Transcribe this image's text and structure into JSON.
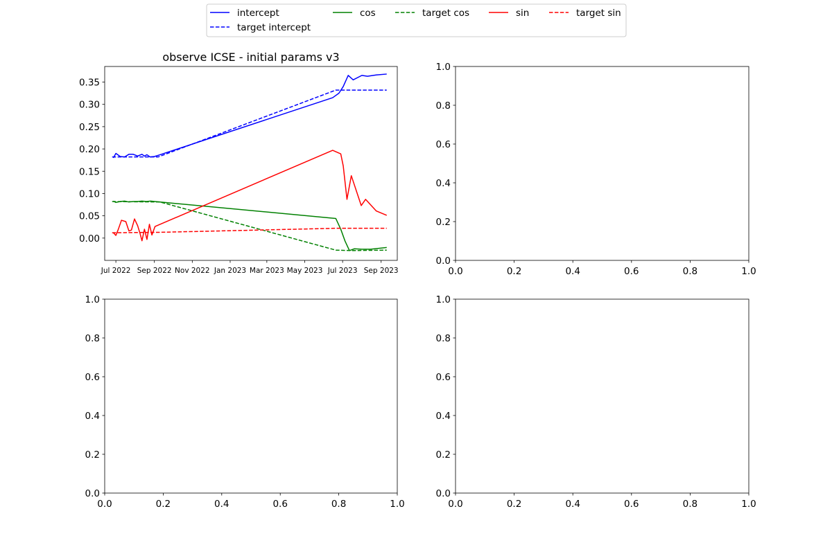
{
  "legend": {
    "placement": "top-center",
    "columns": 5,
    "entries": [
      {
        "label": "intercept",
        "color": "#0000ff",
        "dashed": false
      },
      {
        "label": "target intercept",
        "color": "#0000ff",
        "dashed": true
      },
      {
        "label": "cos",
        "color": "#008000",
        "dashed": false
      },
      {
        "label": "target cos",
        "color": "#008000",
        "dashed": true
      },
      {
        "label": "sin",
        "color": "#ff0000",
        "dashed": false
      },
      {
        "label": "target sin",
        "color": "#ff0000",
        "dashed": true
      }
    ]
  },
  "chart_data": [
    {
      "type": "line",
      "title": "observe ICSE - initial params v3",
      "xlabel": "",
      "ylabel": "",
      "x_axis_type": "date",
      "xlim": [
        "2022-06-13",
        "2023-09-27"
      ],
      "ylim": [
        -0.05,
        0.385
      ],
      "x_ticks": [
        {
          "date": "2022-07-01",
          "label": "Jul 2022"
        },
        {
          "date": "2022-09-01",
          "label": "Sep 2022"
        },
        {
          "date": "2022-11-01",
          "label": "Nov 2022"
        },
        {
          "date": "2023-01-01",
          "label": "Jan 2023"
        },
        {
          "date": "2023-03-01",
          "label": "Mar 2023"
        },
        {
          "date": "2023-05-01",
          "label": "May 2023"
        },
        {
          "date": "2023-07-01",
          "label": "Jul 2023"
        },
        {
          "date": "2023-09-01",
          "label": "Sep 2023"
        }
      ],
      "y_ticks": [
        0.0,
        0.05,
        0.1,
        0.15,
        0.2,
        0.25,
        0.3,
        0.35
      ],
      "y_tick_labels": [
        "0.00",
        "0.05",
        "0.10",
        "0.15",
        "0.20",
        "0.25",
        "0.30",
        "0.35"
      ],
      "grid": false,
      "series": [
        {
          "name": "intercept",
          "color": "#0000ff",
          "dashed": false,
          "points": [
            [
              "2022-06-27",
              0.18
            ],
            [
              "2022-07-01",
              0.19
            ],
            [
              "2022-07-08",
              0.183
            ],
            [
              "2022-07-15",
              0.182
            ],
            [
              "2022-07-22",
              0.188
            ],
            [
              "2022-07-29",
              0.188
            ],
            [
              "2022-08-05",
              0.184
            ],
            [
              "2022-08-12",
              0.188
            ],
            [
              "2022-08-16",
              0.184
            ],
            [
              "2022-08-20",
              0.187
            ],
            [
              "2022-08-25",
              0.182
            ],
            [
              "2022-09-01",
              0.183
            ],
            [
              "2022-09-08",
              0.186
            ],
            [
              "2023-06-15",
              0.315
            ],
            [
              "2023-06-25",
              0.325
            ],
            [
              "2023-07-02",
              0.34
            ],
            [
              "2023-07-10",
              0.365
            ],
            [
              "2023-07-18",
              0.355
            ],
            [
              "2023-08-01",
              0.365
            ],
            [
              "2023-08-10",
              0.363
            ],
            [
              "2023-08-24",
              0.366
            ],
            [
              "2023-09-10",
              0.368
            ]
          ]
        },
        {
          "name": "target intercept",
          "color": "#0000ff",
          "dashed": true,
          "points": [
            [
              "2022-06-25",
              0.182
            ],
            [
              "2022-09-07",
              0.182
            ],
            [
              "2023-06-20",
              0.332
            ],
            [
              "2023-09-10",
              0.332
            ]
          ]
        },
        {
          "name": "cos",
          "color": "#008000",
          "dashed": false,
          "points": [
            [
              "2022-06-27",
              0.083
            ],
            [
              "2022-07-01",
              0.08
            ],
            [
              "2022-07-08",
              0.082
            ],
            [
              "2022-07-15",
              0.083
            ],
            [
              "2022-07-22",
              0.081
            ],
            [
              "2022-07-29",
              0.082
            ],
            [
              "2022-08-05",
              0.082
            ],
            [
              "2022-08-12",
              0.083
            ],
            [
              "2022-08-19",
              0.082
            ],
            [
              "2022-08-26",
              0.083
            ],
            [
              "2022-09-02",
              0.082
            ],
            [
              "2023-06-20",
              0.044
            ],
            [
              "2023-06-28",
              0.02
            ],
            [
              "2023-07-05",
              -0.007
            ],
            [
              "2023-07-12",
              -0.028
            ],
            [
              "2023-07-20",
              -0.024
            ],
            [
              "2023-08-01",
              -0.025
            ],
            [
              "2023-08-15",
              -0.025
            ],
            [
              "2023-09-10",
              -0.021
            ]
          ]
        },
        {
          "name": "target cos",
          "color": "#008000",
          "dashed": true,
          "points": [
            [
              "2022-06-25",
              0.082
            ],
            [
              "2022-09-10",
              0.081
            ],
            [
              "2023-06-20",
              -0.027
            ],
            [
              "2023-07-15",
              -0.028
            ],
            [
              "2023-09-10",
              -0.027
            ]
          ]
        },
        {
          "name": "sin",
          "color": "#ff0000",
          "dashed": false,
          "points": [
            [
              "2022-06-27",
              0.012
            ],
            [
              "2022-07-01",
              0.006
            ],
            [
              "2022-07-05",
              0.02
            ],
            [
              "2022-07-10",
              0.04
            ],
            [
              "2022-07-17",
              0.037
            ],
            [
              "2022-07-22",
              0.016
            ],
            [
              "2022-07-26",
              0.018
            ],
            [
              "2022-07-31",
              0.043
            ],
            [
              "2022-08-05",
              0.028
            ],
            [
              "2022-08-09",
              0.01
            ],
            [
              "2022-08-12",
              -0.006
            ],
            [
              "2022-08-16",
              0.02
            ],
            [
              "2022-08-20",
              -0.003
            ],
            [
              "2022-08-24",
              0.031
            ],
            [
              "2022-08-28",
              0.007
            ],
            [
              "2022-09-02",
              0.026
            ],
            [
              "2023-06-15",
              0.197
            ],
            [
              "2023-06-28",
              0.189
            ],
            [
              "2023-07-02",
              0.162
            ],
            [
              "2023-07-08",
              0.087
            ],
            [
              "2023-07-15",
              0.14
            ],
            [
              "2023-07-31",
              0.073
            ],
            [
              "2023-08-07",
              0.087
            ],
            [
              "2023-08-24",
              0.061
            ],
            [
              "2023-09-10",
              0.051
            ]
          ]
        },
        {
          "name": "target sin",
          "color": "#ff0000",
          "dashed": true,
          "points": [
            [
              "2022-06-25",
              0.012
            ],
            [
              "2022-09-10",
              0.013
            ],
            [
              "2023-06-20",
              0.022
            ],
            [
              "2023-09-10",
              0.022
            ]
          ]
        }
      ]
    },
    {
      "type": "line",
      "title": "",
      "xlim": [
        0,
        1
      ],
      "ylim": [
        0,
        1
      ],
      "x_ticks": [
        0.0,
        0.2,
        0.4,
        0.6,
        0.8,
        1.0
      ],
      "x_tick_labels": [
        "0.0",
        "0.2",
        "0.4",
        "0.6",
        "0.8",
        "1.0"
      ],
      "y_ticks": [
        0.0,
        0.2,
        0.4,
        0.6,
        0.8,
        1.0
      ],
      "y_tick_labels": [
        "0.0",
        "0.2",
        "0.4",
        "0.6",
        "0.8",
        "1.0"
      ],
      "series": []
    },
    {
      "type": "line",
      "title": "",
      "xlim": [
        0,
        1
      ],
      "ylim": [
        0,
        1
      ],
      "x_ticks": [
        0.0,
        0.2,
        0.4,
        0.6,
        0.8,
        1.0
      ],
      "x_tick_labels": [
        "0.0",
        "0.2",
        "0.4",
        "0.6",
        "0.8",
        "1.0"
      ],
      "y_ticks": [
        0.0,
        0.2,
        0.4,
        0.6,
        0.8,
        1.0
      ],
      "y_tick_labels": [
        "0.0",
        "0.2",
        "0.4",
        "0.6",
        "0.8",
        "1.0"
      ],
      "series": []
    },
    {
      "type": "line",
      "title": "",
      "xlim": [
        0,
        1
      ],
      "ylim": [
        0,
        1
      ],
      "x_ticks": [
        0.0,
        0.2,
        0.4,
        0.6,
        0.8,
        1.0
      ],
      "x_tick_labels": [
        "0.0",
        "0.2",
        "0.4",
        "0.6",
        "0.8",
        "1.0"
      ],
      "y_ticks": [
        0.0,
        0.2,
        0.4,
        0.6,
        0.8,
        1.0
      ],
      "y_tick_labels": [
        "0.0",
        "0.2",
        "0.4",
        "0.6",
        "0.8",
        "1.0"
      ],
      "series": []
    }
  ]
}
